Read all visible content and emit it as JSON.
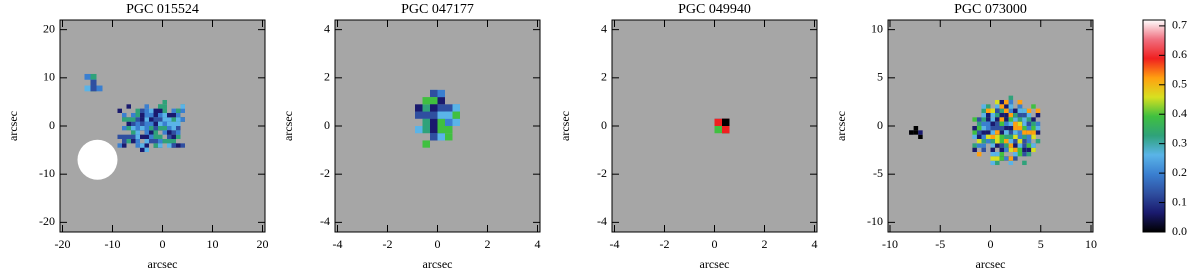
{
  "chart_data": [
    {
      "type": "image",
      "title": "PGC 015524",
      "xlabel": "arcsec",
      "ylabel": "arcsec",
      "xlim": [
        -20.5,
        20.5
      ],
      "ylim": [
        -22,
        22
      ],
      "xticks": [
        -20,
        -10,
        0,
        10,
        20
      ],
      "yticks": [
        -20,
        -10,
        0,
        10,
        20
      ],
      "background": "#a6a6a6"
    },
    {
      "type": "image",
      "title": "PGC 047177",
      "xlabel": "arcsec",
      "ylabel": "arcsec",
      "xlim": [
        -4.1,
        4.1
      ],
      "ylim": [
        -4.4,
        4.4
      ],
      "xticks": [
        -4,
        -2,
        0,
        2,
        4
      ],
      "yticks": [
        -4,
        -2,
        0,
        2,
        4
      ],
      "background": "#a6a6a6"
    },
    {
      "type": "image",
      "title": "PGC 049940",
      "xlabel": "arcsec",
      "ylabel": "arcsec",
      "xlim": [
        -4.1,
        4.1
      ],
      "ylim": [
        -4.4,
        4.4
      ],
      "xticks": [
        -4,
        -2,
        0,
        2,
        4
      ],
      "yticks": [
        -4,
        -2,
        0,
        2,
        4
      ],
      "background": "#a6a6a6"
    },
    {
      "type": "image",
      "title": "PGC 073000",
      "xlabel": "arcsec",
      "ylabel": "arcsec",
      "xlim": [
        -10.2,
        10.2
      ],
      "ylim": [
        -11,
        11
      ],
      "xticks": [
        -10,
        -5,
        0,
        5,
        10
      ],
      "yticks": [
        -10,
        -5,
        0,
        5,
        10
      ],
      "background": "#a6a6a6"
    },
    {
      "type": "colorbar",
      "ylim": [
        0,
        0.72
      ],
      "yticks": [
        {
          "value": 0,
          "label": "0.0"
        },
        0.1,
        0.2,
        0.3,
        0.4,
        0.5,
        0.6,
        0.7
      ],
      "colors": [
        "#000000",
        "#1a1a6e",
        "#2f4fa0",
        "#3a7fd0",
        "#5ab4e8",
        "#2fa27a",
        "#40c040",
        "#d8e020",
        "#ffa010",
        "#f02020",
        "#f07080",
        "#ffffff"
      ]
    }
  ]
}
